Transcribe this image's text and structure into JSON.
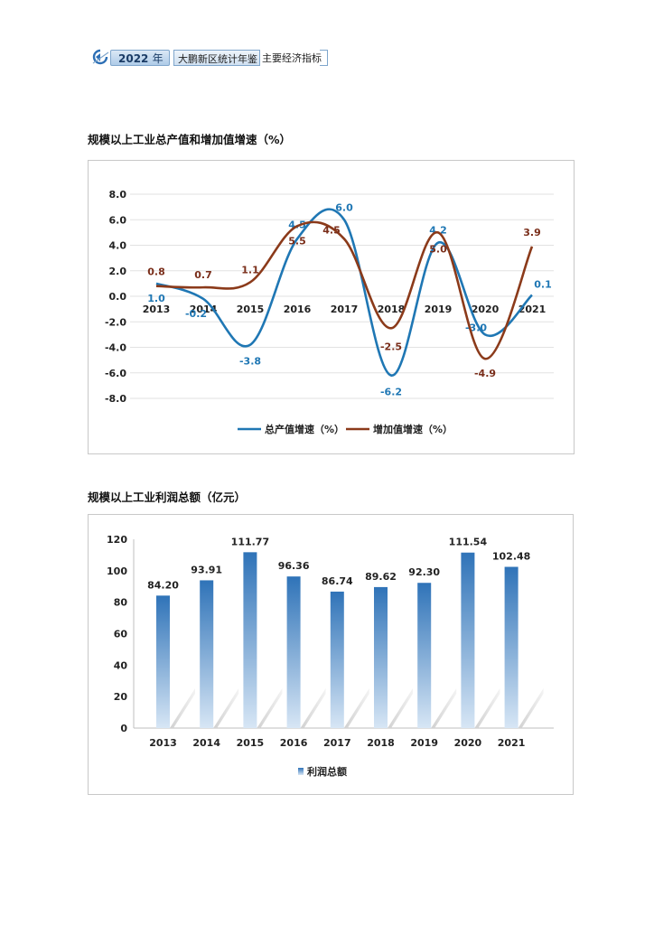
{
  "header": {
    "year": "2022",
    "year_suffix": "年",
    "title": "大鹏新区统计年鉴",
    "subtitle": "主要经济指标"
  },
  "sections": [
    {
      "title": "规模以上工业总产值和增加值增速（%）"
    },
    {
      "title": "规模以上工业利润总额（亿元）"
    }
  ],
  "chart_data": [
    {
      "type": "line",
      "x": [
        "2013",
        "2014",
        "2015",
        "2016",
        "2017",
        "2018",
        "2019",
        "2020",
        "2021"
      ],
      "ylim": [
        -8.0,
        8.0
      ],
      "yticks": [
        "8.0",
        "6.0",
        "4.0",
        "2.0",
        "0.0",
        "-2.0",
        "-4.0",
        "-6.0",
        "-8.0"
      ],
      "grid": true,
      "legend": "bottom",
      "series": [
        {
          "name": "总产值增速（%）",
          "color": "#1f77b4",
          "values": [
            1.0,
            -0.2,
            -3.8,
            4.5,
            6.0,
            -6.2,
            4.2,
            -3.0,
            0.1
          ],
          "labels": [
            "1.0",
            "-0.2",
            "-3.8",
            "4.5",
            "6.0",
            "-6.2",
            "4.2",
            "-3.0",
            "0.1"
          ]
        },
        {
          "name": "增加值增速（%）",
          "color": "#8b3a1a",
          "values": [
            0.8,
            0.7,
            1.1,
            5.5,
            4.5,
            -2.5,
            5.0,
            -4.9,
            3.9
          ],
          "labels": [
            "0.8",
            "0.7",
            "1.1",
            "5.5",
            "4.5",
            "-2.5",
            "5.0",
            "-4.9",
            "3.9"
          ]
        }
      ]
    },
    {
      "type": "bar",
      "categories": [
        "2013",
        "2014",
        "2015",
        "2016",
        "2017",
        "2018",
        "2019",
        "2020",
        "2021"
      ],
      "ylim": [
        0,
        120
      ],
      "yticks": [
        "0",
        "20",
        "40",
        "60",
        "80",
        "100",
        "120"
      ],
      "legend": "bottom",
      "series": [
        {
          "name": "利润总额",
          "color": "#3a7bbf",
          "values": [
            84.2,
            93.91,
            111.77,
            96.36,
            86.74,
            89.62,
            92.3,
            111.54,
            102.48
          ],
          "labels": [
            "84.20",
            "93.91",
            "111.77",
            "96.36",
            "86.74",
            "89.62",
            "92.30",
            "111.54",
            "102.48"
          ]
        }
      ]
    }
  ]
}
